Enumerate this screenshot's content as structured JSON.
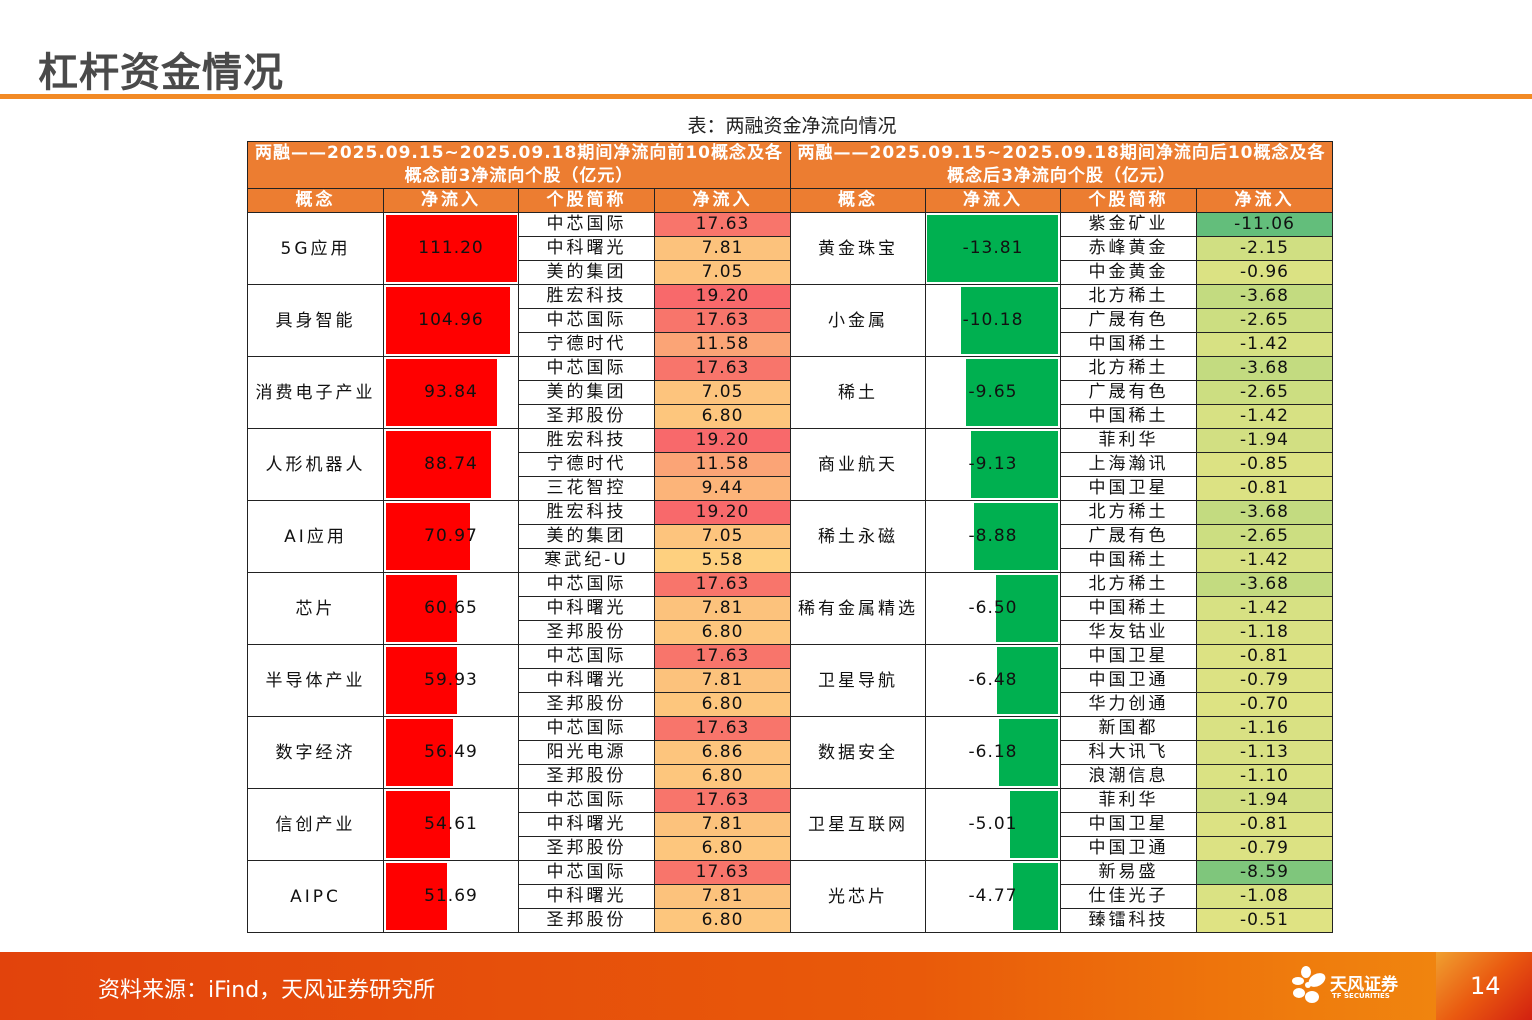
{
  "page": {
    "title": "杠杆资金情况",
    "table_caption": "表：两融资金净流向情况",
    "page_number": "14"
  },
  "colors": {
    "accent_orange": "#ec7d31",
    "positive_bar": "#ff0000",
    "negative_bar": "#00b050"
  },
  "left_table": {
    "title": "两融——2025.09.15~2025.09.18期间净流向前10概念及各概念前3净流向个股（亿元）",
    "headers": [
      "概念",
      "净流入",
      "个股简称",
      "净流入"
    ],
    "max_value": 111.2,
    "groups": [
      {
        "concept": "5G应用",
        "net": "111.20",
        "stocks": [
          {
            "name": "中芯国际",
            "value": "17.63",
            "color": "#f8756b"
          },
          {
            "name": "中科曙光",
            "value": "7.81",
            "color": "#fcc27c"
          },
          {
            "name": "美的集团",
            "value": "7.05",
            "color": "#fdc47d"
          }
        ]
      },
      {
        "concept": "具身智能",
        "net": "104.96",
        "stocks": [
          {
            "name": "胜宏科技",
            "value": "19.20",
            "color": "#f8696b"
          },
          {
            "name": "中芯国际",
            "value": "17.63",
            "color": "#f8756b"
          },
          {
            "name": "宁德时代",
            "value": "11.58",
            "color": "#fba476"
          }
        ]
      },
      {
        "concept": "消费电子产业",
        "net": "93.84",
        "stocks": [
          {
            "name": "中芯国际",
            "value": "17.63",
            "color": "#f8756b"
          },
          {
            "name": "美的集团",
            "value": "7.05",
            "color": "#fdc47d"
          },
          {
            "name": "圣邦股份",
            "value": "6.80",
            "color": "#fdc67d"
          }
        ]
      },
      {
        "concept": "人形机器人",
        "net": "88.74",
        "stocks": [
          {
            "name": "胜宏科技",
            "value": "19.20",
            "color": "#f8696b"
          },
          {
            "name": "宁德时代",
            "value": "11.58",
            "color": "#fba476"
          },
          {
            "name": "三花智控",
            "value": "9.44",
            "color": "#fcb479"
          }
        ]
      },
      {
        "concept": "AI应用",
        "net": "70.97",
        "stocks": [
          {
            "name": "胜宏科技",
            "value": "19.20",
            "color": "#f8696b"
          },
          {
            "name": "美的集团",
            "value": "7.05",
            "color": "#fdc47d"
          },
          {
            "name": "寒武纪-U",
            "value": "5.58",
            "color": "#fed07f"
          }
        ]
      },
      {
        "concept": "芯片",
        "net": "60.65",
        "stocks": [
          {
            "name": "中芯国际",
            "value": "17.63",
            "color": "#f8756b"
          },
          {
            "name": "中科曙光",
            "value": "7.81",
            "color": "#fcc27c"
          },
          {
            "name": "圣邦股份",
            "value": "6.80",
            "color": "#fdc67d"
          }
        ]
      },
      {
        "concept": "半导体产业",
        "net": "59.93",
        "stocks": [
          {
            "name": "中芯国际",
            "value": "17.63",
            "color": "#f8756b"
          },
          {
            "name": "中科曙光",
            "value": "7.81",
            "color": "#fcc27c"
          },
          {
            "name": "圣邦股份",
            "value": "6.80",
            "color": "#fdc67d"
          }
        ]
      },
      {
        "concept": "数字经济",
        "net": "56.49",
        "stocks": [
          {
            "name": "中芯国际",
            "value": "17.63",
            "color": "#f8756b"
          },
          {
            "name": "阳光电源",
            "value": "6.86",
            "color": "#fdc57d"
          },
          {
            "name": "圣邦股份",
            "value": "6.80",
            "color": "#fdc67d"
          }
        ]
      },
      {
        "concept": "信创产业",
        "net": "54.61",
        "stocks": [
          {
            "name": "中芯国际",
            "value": "17.63",
            "color": "#f8756b"
          },
          {
            "name": "中科曙光",
            "value": "7.81",
            "color": "#fcc27c"
          },
          {
            "name": "圣邦股份",
            "value": "6.80",
            "color": "#fdc67d"
          }
        ]
      },
      {
        "concept": "AIPC",
        "net": "51.69",
        "stocks": [
          {
            "name": "中芯国际",
            "value": "17.63",
            "color": "#f8756b"
          },
          {
            "name": "中科曙光",
            "value": "7.81",
            "color": "#fcc27c"
          },
          {
            "name": "圣邦股份",
            "value": "6.80",
            "color": "#fdc67d"
          }
        ]
      }
    ]
  },
  "right_table": {
    "title": "两融——2025.09.15~2025.09.18期间净流向后10概念及各概念后3净流向个股（亿元）",
    "headers": [
      "概念",
      "净流入",
      "个股简称",
      "净流入"
    ],
    "max_value": 13.81,
    "groups": [
      {
        "concept": "黄金珠宝",
        "net": "-13.81",
        "stocks": [
          {
            "name": "紫金矿业",
            "value": "-11.06",
            "color": "#63be7b"
          },
          {
            "name": "赤峰黄金",
            "value": "-2.15",
            "color": "#d0df82"
          },
          {
            "name": "中金黄金",
            "value": "-0.96",
            "color": "#dbe283"
          }
        ]
      },
      {
        "concept": "小金属",
        "net": "-10.18",
        "stocks": [
          {
            "name": "北方稀土",
            "value": "-3.68",
            "color": "#c3db80"
          },
          {
            "name": "广晟有色",
            "value": "-2.65",
            "color": "#ccde81"
          },
          {
            "name": "中国稀土",
            "value": "-1.42",
            "color": "#d7e183"
          }
        ]
      },
      {
        "concept": "稀土",
        "net": "-9.65",
        "stocks": [
          {
            "name": "北方稀土",
            "value": "-3.68",
            "color": "#c3db80"
          },
          {
            "name": "广晟有色",
            "value": "-2.65",
            "color": "#ccde81"
          },
          {
            "name": "中国稀土",
            "value": "-1.42",
            "color": "#d7e183"
          }
        ]
      },
      {
        "concept": "商业航天",
        "net": "-9.13",
        "stocks": [
          {
            "name": "菲利华",
            "value": "-1.94",
            "color": "#d2df82"
          },
          {
            "name": "上海瀚讯",
            "value": "-0.85",
            "color": "#dce283"
          },
          {
            "name": "中国卫星",
            "value": "-0.81",
            "color": "#dce283"
          }
        ]
      },
      {
        "concept": "稀土永磁",
        "net": "-8.88",
        "stocks": [
          {
            "name": "北方稀土",
            "value": "-3.68",
            "color": "#c3db80"
          },
          {
            "name": "广晟有色",
            "value": "-2.65",
            "color": "#ccde81"
          },
          {
            "name": "中国稀土",
            "value": "-1.42",
            "color": "#d7e183"
          }
        ]
      },
      {
        "concept": "稀有金属精选",
        "net": "-6.50",
        "stocks": [
          {
            "name": "北方稀土",
            "value": "-3.68",
            "color": "#c3db80"
          },
          {
            "name": "中国稀土",
            "value": "-1.42",
            "color": "#d7e183"
          },
          {
            "name": "华友钴业",
            "value": "-1.18",
            "color": "#d9e183"
          }
        ]
      },
      {
        "concept": "卫星导航",
        "net": "-6.48",
        "stocks": [
          {
            "name": "中国卫星",
            "value": "-0.81",
            "color": "#dce283"
          },
          {
            "name": "中国卫通",
            "value": "-0.79",
            "color": "#dce283"
          },
          {
            "name": "华力创通",
            "value": "-0.70",
            "color": "#dde383"
          }
        ]
      },
      {
        "concept": "数据安全",
        "net": "-6.18",
        "stocks": [
          {
            "name": "新国都",
            "value": "-1.16",
            "color": "#d9e183"
          },
          {
            "name": "科大讯飞",
            "value": "-1.13",
            "color": "#d9e183"
          },
          {
            "name": "浪潮信息",
            "value": "-1.10",
            "color": "#dae283"
          }
        ]
      },
      {
        "concept": "卫星互联网",
        "net": "-5.01",
        "stocks": [
          {
            "name": "菲利华",
            "value": "-1.94",
            "color": "#d2df82"
          },
          {
            "name": "中国卫星",
            "value": "-0.81",
            "color": "#dce283"
          },
          {
            "name": "中国卫通",
            "value": "-0.79",
            "color": "#dce283"
          }
        ]
      },
      {
        "concept": "光芯片",
        "net": "-4.77",
        "stocks": [
          {
            "name": "新易盛",
            "value": "-8.59",
            "color": "#7fc67c"
          },
          {
            "name": "仕佳光子",
            "value": "-1.08",
            "color": "#dae283"
          },
          {
            "name": "臻镭科技",
            "value": "-0.51",
            "color": "#dfe383"
          }
        ]
      }
    ]
  },
  "footer": {
    "source": "资料来源：iFind，天风证券研究所",
    "logo_text": "天风证券",
    "logo_sub": "TF SECURITIES"
  }
}
